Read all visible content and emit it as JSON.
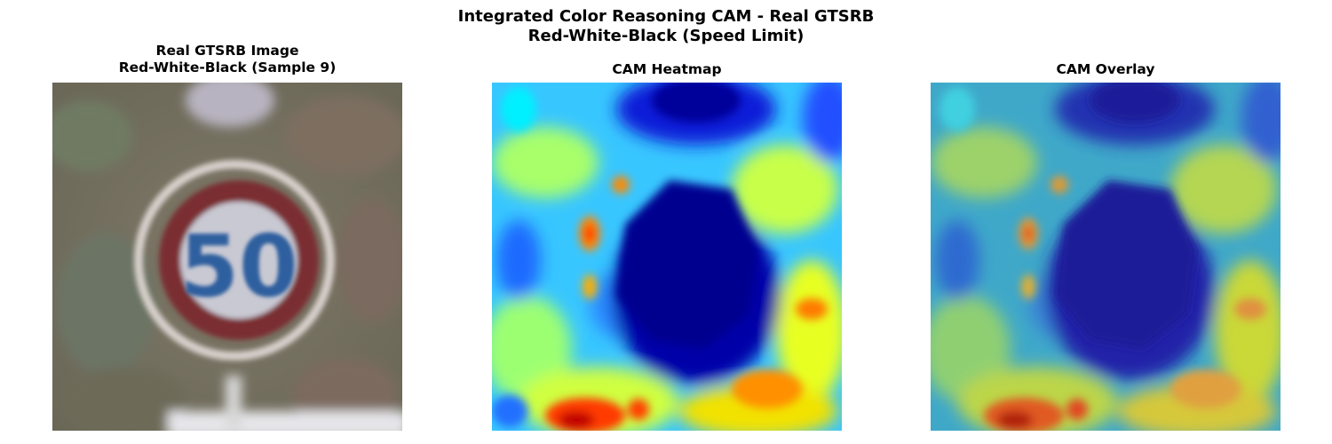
{
  "figure": {
    "title_line1": "Integrated Color Reasoning CAM - Real GTSRB",
    "title_line2": "Red-White-Black (Speed Limit)"
  },
  "panels": [
    {
      "title_line1": "Real GTSRB Image",
      "title_line2": "Red-White-Black (Sample 9)",
      "sign_text": "50"
    },
    {
      "title_line1": "CAM Heatmap"
    },
    {
      "title_line1": "CAM Overlay"
    }
  ],
  "colors": {
    "sign_ring": "#7a2f33",
    "sign_face": "#c9c9d3",
    "sign_digits": "#2f5f9e",
    "background_photo": "#7c7566",
    "cam_low": "#00008f",
    "cam_mid": "#00e5ff",
    "cam_high": "#ff2a00"
  }
}
